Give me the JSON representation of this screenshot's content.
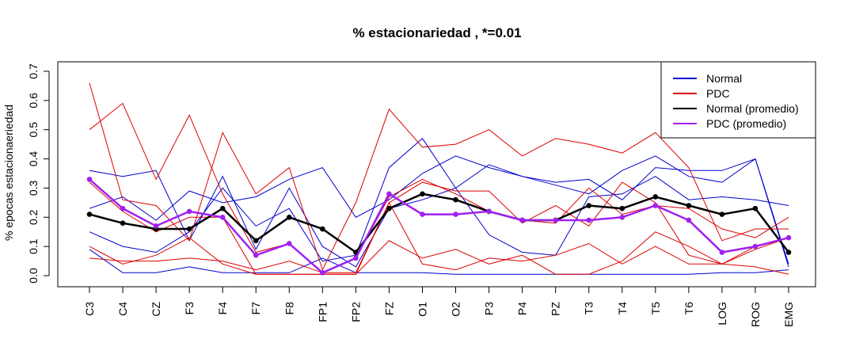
{
  "chart_data": {
    "type": "line",
    "title": "% estacionariedad , *=0.01",
    "xlabel": "",
    "ylabel": "% epocas estacionaeriedad",
    "categories": [
      "C3",
      "C4",
      "CZ",
      "F3",
      "F4",
      "F7",
      "F8",
      "FP1",
      "FP2",
      "FZ",
      "O1",
      "O2",
      "P3",
      "P4",
      "PZ",
      "T3",
      "T4",
      "T5",
      "T6",
      "LOG",
      "ROG",
      "EMG"
    ],
    "ylim": [
      0,
      0.7
    ],
    "yticks": [
      "0.0",
      "0.1",
      "0.2",
      "0.3",
      "0.4",
      "0.5",
      "0.6",
      "0.7"
    ],
    "grid": false,
    "legend_position": "top-right",
    "colors": {
      "normal": "#0000cc",
      "pdc": "#dd0000",
      "normal_mean": "#000000",
      "pdc_mean": "#a020f0"
    },
    "legend": [
      {
        "label": "Normal",
        "color": "#0000cc"
      },
      {
        "label": "PDC",
        "color": "#dd0000"
      },
      {
        "label": "Normal (promedio)",
        "color": "#000000"
      },
      {
        "label": "PDC (promedio)",
        "color": "#a020f0"
      }
    ],
    "series": [
      {
        "group": "Normal",
        "color": "#0000cc",
        "values": [
          0.36,
          0.34,
          0.36,
          0.12,
          0.34,
          0.09,
          0.3,
          0.1,
          0.03,
          0.23,
          0.26,
          0.3,
          0.38,
          0.34,
          0.32,
          0.33,
          0.26,
          0.37,
          0.36,
          0.36,
          0.4,
          0.04
        ]
      },
      {
        "group": "Normal",
        "color": "#0000cc",
        "values": [
          0.23,
          0.27,
          0.19,
          0.29,
          0.25,
          0.27,
          0.33,
          0.37,
          0.2,
          0.26,
          0.35,
          0.41,
          0.37,
          0.34,
          0.31,
          0.28,
          0.36,
          0.41,
          0.34,
          0.32,
          0.4,
          0.03
        ]
      },
      {
        "group": "Normal",
        "color": "#0000cc",
        "values": [
          0.15,
          0.1,
          0.08,
          0.15,
          0.3,
          0.17,
          0.23,
          0.05,
          0.07,
          0.37,
          0.47,
          0.3,
          0.14,
          0.08,
          0.07,
          0.27,
          0.28,
          0.34,
          0.26,
          0.27,
          0.26,
          0.24
        ]
      },
      {
        "group": "Normal",
        "color": "#0000cc",
        "values": [
          0.09,
          0.01,
          0.01,
          0.03,
          0.01,
          0.01,
          0.01,
          0.06,
          0.01,
          0.01,
          0.01,
          0.005,
          0.005,
          0.005,
          0.005,
          0.005,
          0.005,
          0.005,
          0.005,
          0.01,
          0.01,
          0.02
        ]
      },
      {
        "group": "PDC",
        "color": "#dd0000",
        "values": [
          0.66,
          0.26,
          0.24,
          0.12,
          0.49,
          0.28,
          0.37,
          0.02,
          0.25,
          0.57,
          0.44,
          0.45,
          0.5,
          0.41,
          0.47,
          0.45,
          0.42,
          0.49,
          0.37,
          0.12,
          0.16,
          0.16
        ]
      },
      {
        "group": "PDC",
        "color": "#dd0000",
        "values": [
          0.5,
          0.59,
          0.33,
          0.55,
          0.28,
          0.08,
          0.11,
          0.01,
          0.06,
          0.27,
          0.33,
          0.28,
          0.22,
          0.19,
          0.18,
          0.3,
          0.21,
          0.24,
          0.23,
          0.16,
          0.13,
          0.2
        ]
      },
      {
        "group": "PDC",
        "color": "#dd0000",
        "values": [
          0.06,
          0.05,
          0.05,
          0.06,
          0.05,
          0.02,
          0.05,
          0.01,
          0.01,
          0.25,
          0.32,
          0.29,
          0.29,
          0.18,
          0.24,
          0.17,
          0.32,
          0.25,
          0.07,
          0.04,
          0.09,
          0.13
        ]
      },
      {
        "group": "PDC",
        "color": "#dd0000",
        "values": [
          0.1,
          0.04,
          0.07,
          0.13,
          0.04,
          0.005,
          0.005,
          0.005,
          0.005,
          0.12,
          0.06,
          0.09,
          0.04,
          0.07,
          0.005,
          0.005,
          0.05,
          0.15,
          0.1,
          0.04,
          0.03,
          0.005
        ]
      },
      {
        "group": "PDC",
        "color": "#dd0000",
        "values": [
          0.32,
          0.22,
          0.15,
          0.2,
          0.2,
          0.005,
          0.005,
          0.005,
          0.005,
          0.25,
          0.04,
          0.02,
          0.06,
          0.05,
          0.07,
          0.11,
          0.04,
          0.1,
          0.04,
          0.04,
          0.1,
          0.13
        ]
      },
      {
        "group": "Normal (promedio)",
        "color": "#000000",
        "mean": true,
        "values": [
          0.21,
          0.18,
          0.16,
          0.16,
          0.23,
          0.12,
          0.2,
          0.16,
          0.08,
          0.23,
          0.28,
          0.26,
          0.22,
          0.19,
          0.19,
          0.24,
          0.23,
          0.27,
          0.24,
          0.21,
          0.23,
          0.08
        ]
      },
      {
        "group": "PDC (promedio)",
        "color": "#a020f0",
        "mean": true,
        "values": [
          0.33,
          0.23,
          0.17,
          0.22,
          0.2,
          0.07,
          0.11,
          0.01,
          0.06,
          0.28,
          0.21,
          0.21,
          0.22,
          0.19,
          0.19,
          0.19,
          0.2,
          0.24,
          0.19,
          0.08,
          0.1,
          0.13
        ]
      }
    ]
  }
}
